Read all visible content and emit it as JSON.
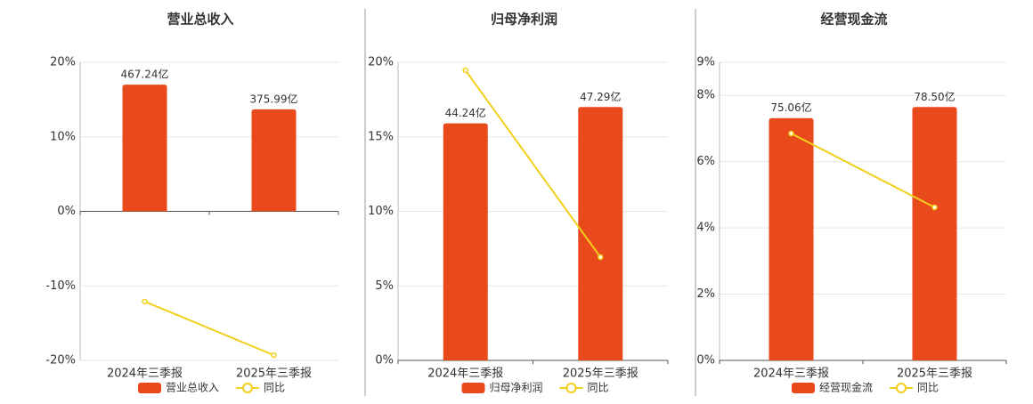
{
  "chart_data": [
    {
      "type": "combo",
      "title": "营业总收入",
      "categories": [
        "2024年三季报",
        "2025年三季报"
      ],
      "series": [
        {
          "name": "营业总收入",
          "type": "bar",
          "color": "#e84a1b",
          "values": [
            467.24,
            375.99
          ],
          "value_labels": [
            "467.24亿",
            "375.99亿"
          ]
        },
        {
          "name": "同比",
          "type": "line",
          "color": "#f2cf1a",
          "values": [
            -12.1,
            -19.3
          ]
        }
      ],
      "ylim": [
        -20,
        20
      ],
      "yticks": [
        {
          "value": -20,
          "label": "-20%"
        },
        {
          "value": -10,
          "label": "-10%"
        },
        {
          "value": 0,
          "label": "0%"
        },
        {
          "value": 10,
          "label": "10%"
        },
        {
          "value": 20,
          "label": "20%"
        }
      ],
      "grid": true
    },
    {
      "type": "combo",
      "title": "归母净利润",
      "categories": [
        "2024年三季报",
        "2025年三季报"
      ],
      "series": [
        {
          "name": "归母净利润",
          "type": "bar",
          "color": "#e84a1b",
          "values": [
            44.24,
            47.29
          ],
          "value_labels": [
            "44.24亿",
            "47.29亿"
          ]
        },
        {
          "name": "同比",
          "type": "line",
          "color": "#f2cf1a",
          "values": [
            19.46,
            6.93
          ]
        }
      ],
      "ylim": [
        0,
        20
      ],
      "yticks": [
        {
          "value": 0,
          "label": "0%"
        },
        {
          "value": 5,
          "label": "5%"
        },
        {
          "value": 10,
          "label": "10%"
        },
        {
          "value": 15,
          "label": "15%"
        },
        {
          "value": 20,
          "label": "20%"
        }
      ],
      "grid": true
    },
    {
      "type": "combo",
      "title": "经营现金流",
      "categories": [
        "2024年三季报",
        "2025年三季报"
      ],
      "series": [
        {
          "name": "经营现金流",
          "type": "bar",
          "color": "#e84a1b",
          "values": [
            75.06,
            78.5
          ],
          "value_labels": [
            "75.06亿",
            "78.50亿"
          ]
        },
        {
          "name": "同比",
          "type": "line",
          "color": "#f2cf1a",
          "values": [
            6.85,
            4.62
          ]
        }
      ],
      "ylim": [
        0,
        9
      ],
      "yticks": [
        {
          "value": 0,
          "label": "0%"
        },
        {
          "value": 2,
          "label": "2%"
        },
        {
          "value": 4,
          "label": "4%"
        },
        {
          "value": 6,
          "label": "6%"
        },
        {
          "value": 8,
          "label": "8%"
        },
        {
          "value": 9,
          "label": "9%"
        }
      ],
      "grid": true
    }
  ]
}
